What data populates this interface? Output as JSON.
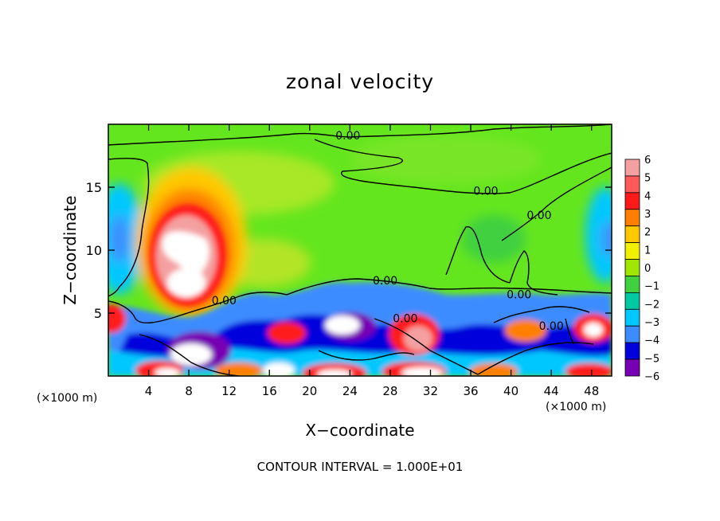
{
  "chart_data": {
    "type": "heatmap",
    "title": "zonal velocity",
    "xlabel": "X−coordinate",
    "ylabel": "Z−coordinate",
    "x_units": "(×1000 m)",
    "y_units": "(×1000 m)",
    "footer": "CONTOUR INTERVAL = 1.000E+01",
    "x_ticks": [
      4,
      8,
      12,
      16,
      20,
      24,
      28,
      32,
      36,
      40,
      44,
      48
    ],
    "y_ticks": [
      5,
      10,
      15
    ],
    "xlim": [
      0,
      50
    ],
    "ylim": [
      0,
      20
    ],
    "colorbar": {
      "levels": [
        6,
        5,
        4,
        3,
        2,
        1,
        0,
        -1,
        -2,
        -3,
        -4,
        -5,
        -6
      ],
      "labels": [
        "6",
        "5",
        "4",
        "3",
        "2",
        "1",
        "0",
        "−1",
        "−2",
        "−3",
        "−4",
        "−5",
        "−6"
      ],
      "colors": [
        "#f4a0a0",
        "#ff5a5a",
        "#ff1a1a",
        "#ff7f00",
        "#ffc800",
        "#f0f000",
        "#a0e600",
        "#40d040",
        "#00c8a0",
        "#00c8ff",
        "#3c8cff",
        "#0000dc",
        "#7800b4"
      ]
    },
    "contour_labels": [
      {
        "text": "0.00",
        "x": 23.8,
        "z": 19.1
      },
      {
        "text": "0.00",
        "x": 37.5,
        "z": 14.7
      },
      {
        "text": "0.00",
        "x": 42.8,
        "z": 12.8
      },
      {
        "text": "0.00",
        "x": 11.5,
        "z": 6.0
      },
      {
        "text": "0.00",
        "x": 27.5,
        "z": 7.6
      },
      {
        "text": "0.00",
        "x": 29.5,
        "z": 4.6
      },
      {
        "text": "0.00",
        "x": 40.8,
        "z": 6.5
      },
      {
        "text": "0.00",
        "x": 44.0,
        "z": 4.0
      }
    ]
  }
}
